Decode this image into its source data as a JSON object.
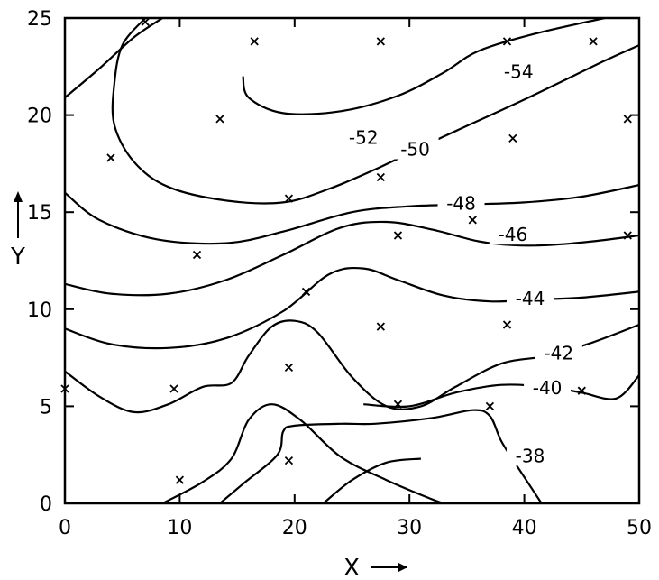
{
  "chart_data": {
    "type": "contour",
    "title": "",
    "xlabel": "X",
    "ylabel": "Y",
    "xlim": [
      0,
      50
    ],
    "ylim": [
      0,
      25
    ],
    "x_ticks": [
      "0",
      "10",
      "20",
      "30",
      "40",
      "50"
    ],
    "y_ticks": [
      "0",
      "5",
      "10",
      "15",
      "20",
      "25"
    ],
    "grid": false,
    "sample_points": [
      [
        7,
        24.8
      ],
      [
        16.5,
        23.8
      ],
      [
        27.5,
        23.8
      ],
      [
        38.5,
        23.8
      ],
      [
        46,
        23.8
      ],
      [
        13.5,
        19.8
      ],
      [
        49,
        19.8
      ],
      [
        4,
        17.8
      ],
      [
        39,
        18.8
      ],
      [
        27.5,
        16.8
      ],
      [
        19.5,
        15.7
      ],
      [
        35.5,
        14.6
      ],
      [
        11.5,
        12.8
      ],
      [
        29,
        13.8
      ],
      [
        49,
        13.8
      ],
      [
        21,
        10.9
      ],
      [
        27.5,
        9.1
      ],
      [
        38.5,
        9.2
      ],
      [
        19.5,
        7
      ],
      [
        0,
        5.9
      ],
      [
        9.5,
        5.9
      ],
      [
        45,
        5.8
      ],
      [
        29,
        5.1
      ],
      [
        37,
        5
      ],
      [
        10,
        1.2
      ],
      [
        19.5,
        2.2
      ]
    ],
    "contours": [
      {
        "level": -54,
        "label": "-54",
        "points": [
          [
            15.5,
            22
          ],
          [
            16,
            20.9
          ],
          [
            19,
            20.1
          ],
          [
            24,
            20.2
          ],
          [
            29,
            21
          ],
          [
            33,
            22.2
          ],
          [
            36,
            23.3
          ],
          [
            41,
            24.2
          ],
          [
            47,
            25
          ]
        ]
      },
      {
        "level": -52,
        "label": "-52",
        "points": [
          [
            7,
            25
          ],
          [
            5,
            23.6
          ],
          [
            4.3,
            21.6
          ],
          [
            4.3,
            19.5
          ],
          [
            6,
            17.6
          ],
          [
            9,
            16.3
          ],
          [
            14,
            15.6
          ],
          [
            19,
            15.5
          ],
          [
            23,
            16.2
          ],
          [
            27,
            17.2
          ],
          [
            33,
            18.9
          ],
          [
            40,
            20.8
          ],
          [
            47,
            22.8
          ],
          [
            50,
            23.6
          ]
        ]
      },
      {
        "level": -50,
        "label": "-50",
        "points": [
          [
            0,
            20.9
          ],
          [
            3,
            22.4
          ],
          [
            6,
            24
          ],
          [
            8.5,
            25
          ]
        ]
      },
      {
        "level": -48,
        "label": "-48",
        "points": [
          [
            0,
            16
          ],
          [
            3,
            14.6
          ],
          [
            8,
            13.6
          ],
          [
            14,
            13.4
          ],
          [
            19,
            14
          ],
          [
            25,
            15
          ],
          [
            30,
            15.3
          ],
          [
            35,
            15.4
          ],
          [
            40,
            15.5
          ],
          [
            45,
            15.8
          ],
          [
            50,
            16.4
          ]
        ]
      },
      {
        "level": -46,
        "label": "-46",
        "points": [
          [
            0,
            11.3
          ],
          [
            4,
            10.8
          ],
          [
            9,
            10.8
          ],
          [
            14,
            11.5
          ],
          [
            19,
            12.8
          ],
          [
            24,
            14.2
          ],
          [
            28,
            14.5
          ],
          [
            32,
            14.1
          ],
          [
            36,
            13.5
          ],
          [
            39,
            13.3
          ],
          [
            42,
            13.3
          ],
          [
            46,
            13.5
          ],
          [
            50,
            13.8
          ]
        ]
      },
      {
        "level": -44,
        "label": "-44",
        "points": [
          [
            0,
            9
          ],
          [
            4,
            8.2
          ],
          [
            9,
            8
          ],
          [
            14,
            8.5
          ],
          [
            19,
            9.9
          ],
          [
            23,
            11.8
          ],
          [
            26,
            12.1
          ],
          [
            29,
            11.5
          ],
          [
            33,
            10.7
          ],
          [
            37,
            10.4
          ],
          [
            41,
            10.5
          ],
          [
            45,
            10.6
          ],
          [
            50,
            10.9
          ]
        ]
      },
      {
        "level": -42,
        "label": "-42",
        "points": [
          [
            0,
            6.8
          ],
          [
            3,
            5.5
          ],
          [
            6,
            4.7
          ],
          [
            9,
            5.1
          ],
          [
            12,
            6
          ],
          [
            14.5,
            6.2
          ],
          [
            16,
            7.6
          ],
          [
            18,
            9.1
          ],
          [
            20,
            9.4
          ],
          [
            22,
            8.8
          ],
          [
            25,
            6.5
          ],
          [
            28,
            5
          ],
          [
            31,
            5
          ],
          [
            34,
            6
          ],
          [
            38,
            7.2
          ],
          [
            42,
            7.6
          ],
          [
            46,
            8.3
          ],
          [
            50,
            9.2
          ]
        ]
      },
      {
        "level": -40,
        "label": "-40",
        "points": [
          [
            8.5,
            0
          ],
          [
            12,
            1.1
          ],
          [
            14.5,
            2.3
          ],
          [
            16,
            4.3
          ],
          [
            18,
            5.1
          ],
          [
            20.5,
            4.3
          ],
          [
            24,
            2.4
          ],
          [
            28,
            1.2
          ],
          [
            32,
            0.2
          ],
          [
            33,
            0
          ]
        ]
      },
      {
        "level": -40,
        "label": "",
        "points": [
          [
            26,
            5.1
          ],
          [
            30,
            5
          ],
          [
            34,
            5.7
          ],
          [
            38,
            6.1
          ],
          [
            42,
            6
          ],
          [
            45,
            5.7
          ],
          [
            48,
            5.4
          ],
          [
            50,
            6.6
          ]
        ]
      },
      {
        "level": -38,
        "label": "-38",
        "points": [
          [
            13.5,
            0
          ],
          [
            15.5,
            1
          ],
          [
            18.5,
            2.5
          ],
          [
            19,
            3.7
          ],
          [
            20,
            4
          ],
          [
            24,
            4.1
          ],
          [
            27,
            4.1
          ],
          [
            32,
            4.4
          ],
          [
            35.5,
            4.8
          ],
          [
            37,
            4.5
          ],
          [
            38,
            3.2
          ],
          [
            39.5,
            1.8
          ],
          [
            41.5,
            0
          ]
        ]
      },
      {
        "level": -38,
        "label": "",
        "points": [
          [
            22.5,
            0
          ],
          [
            25,
            1.2
          ],
          [
            28,
            2.1
          ],
          [
            31,
            2.3
          ]
        ]
      }
    ]
  }
}
